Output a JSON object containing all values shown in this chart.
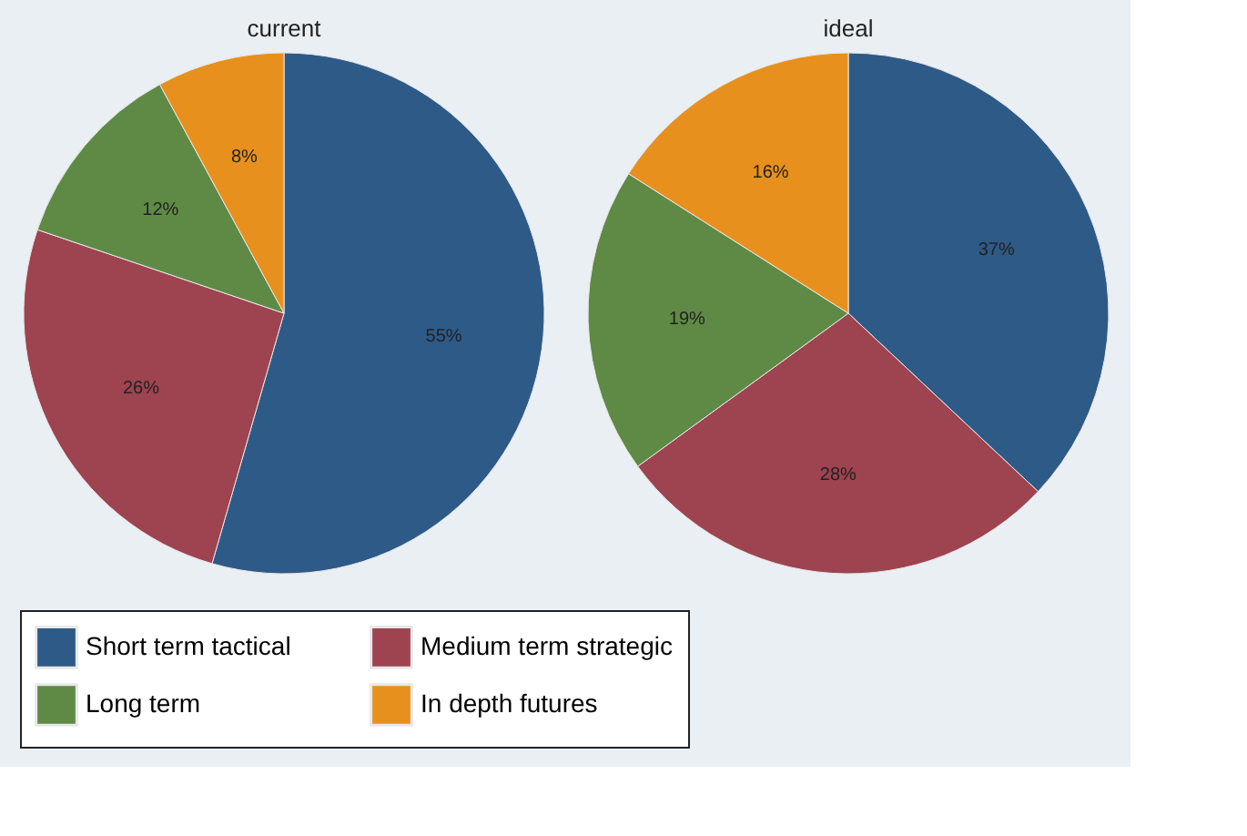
{
  "chart_data": {
    "type": "pie",
    "categories": [
      "Short term tactical",
      "Medium term strategic",
      "Long term",
      "In depth futures"
    ],
    "colors": [
      "#2e5a87",
      "#9e4350",
      "#5f8a45",
      "#e8901e"
    ],
    "legend": "bottom",
    "series": [
      {
        "name": "current",
        "values": [
          55,
          26,
          12,
          8
        ],
        "value_labels": [
          "55%",
          "26%",
          "12%",
          "8%"
        ]
      },
      {
        "name": "ideal",
        "values": [
          37,
          28,
          19,
          16
        ],
        "value_labels": [
          "37%",
          "28%",
          "19%",
          "16%"
        ]
      }
    ]
  }
}
